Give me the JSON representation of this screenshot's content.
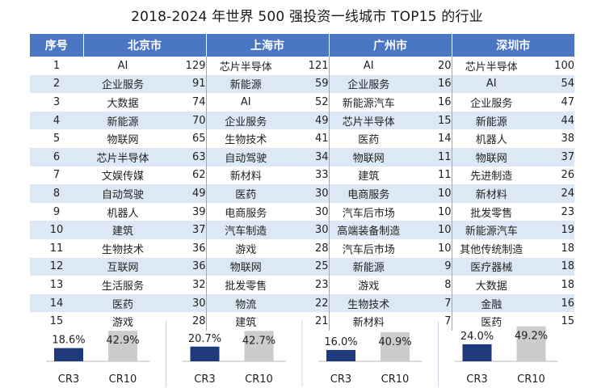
{
  "title": "2018-2024 年世界 500 强投资一线城市 TOP15 的行业",
  "headers": {
    "idx": "序号",
    "cities": [
      "北京市",
      "上海市",
      "广州市",
      "深圳市"
    ]
  },
  "chart_data": {
    "type": "table",
    "rows": [
      {
        "idx": "1",
        "cells": [
          [
            "AI",
            "129"
          ],
          [
            "芯片半导体",
            "121"
          ],
          [
            "AI",
            "20"
          ],
          [
            "芯片半导体",
            "100"
          ]
        ]
      },
      {
        "idx": "2",
        "cells": [
          [
            "企业服务",
            "91"
          ],
          [
            "新能源",
            "59"
          ],
          [
            "企业服务",
            "16"
          ],
          [
            "AI",
            "54"
          ]
        ]
      },
      {
        "idx": "3",
        "cells": [
          [
            "大数据",
            "74"
          ],
          [
            "AI",
            "52"
          ],
          [
            "新能源汽车",
            "16"
          ],
          [
            "企业服务",
            "47"
          ]
        ]
      },
      {
        "idx": "4",
        "cells": [
          [
            "新能源",
            "70"
          ],
          [
            "企业服务",
            "49"
          ],
          [
            "芯片半导体",
            "15"
          ],
          [
            "新能源",
            "44"
          ]
        ]
      },
      {
        "idx": "5",
        "cells": [
          [
            "物联网",
            "65"
          ],
          [
            "生物技术",
            "41"
          ],
          [
            "医药",
            "14"
          ],
          [
            "机器人",
            "38"
          ]
        ]
      },
      {
        "idx": "6",
        "cells": [
          [
            "芯片半导体",
            "63"
          ],
          [
            "自动驾驶",
            "34"
          ],
          [
            "物联网",
            "11"
          ],
          [
            "物联网",
            "37"
          ]
        ]
      },
      {
        "idx": "7",
        "cells": [
          [
            "文娱传媒",
            "62"
          ],
          [
            "新材料",
            "33"
          ],
          [
            "建筑",
            "11"
          ],
          [
            "先进制造",
            "26"
          ]
        ]
      },
      {
        "idx": "8",
        "cells": [
          [
            "自动驾驶",
            "49"
          ],
          [
            "医药",
            "30"
          ],
          [
            "电商服务",
            "10"
          ],
          [
            "新材料",
            "24"
          ]
        ]
      },
      {
        "idx": "9",
        "cells": [
          [
            "机器人",
            "39"
          ],
          [
            "电商服务",
            "30"
          ],
          [
            "汽车后市场",
            "10"
          ],
          [
            "批发零售",
            "23"
          ]
        ]
      },
      {
        "idx": "10",
        "cells": [
          [
            "建筑",
            "37"
          ],
          [
            "汽车制造",
            "30"
          ],
          [
            "高端装备制造",
            "10"
          ],
          [
            "新能源汽车",
            "19"
          ]
        ]
      },
      {
        "idx": "11",
        "cells": [
          [
            "生物技术",
            "36"
          ],
          [
            "游戏",
            "28"
          ],
          [
            "汽车后市场",
            "10"
          ],
          [
            "其他传统制造",
            "18"
          ]
        ]
      },
      {
        "idx": "12",
        "cells": [
          [
            "互联网",
            "36"
          ],
          [
            "物联网",
            "25"
          ],
          [
            "新能源",
            "9"
          ],
          [
            "医疗器械",
            "18"
          ]
        ]
      },
      {
        "idx": "13",
        "cells": [
          [
            "生活服务",
            "32"
          ],
          [
            "批发零售",
            "23"
          ],
          [
            "游戏",
            "8"
          ],
          [
            "大数据",
            "18"
          ]
        ]
      },
      {
        "idx": "14",
        "cells": [
          [
            "医药",
            "30"
          ],
          [
            "物流",
            "22"
          ],
          [
            "生物技术",
            "7"
          ],
          [
            "金融",
            "16"
          ]
        ]
      },
      {
        "idx": "15",
        "cells": [
          [
            "游戏",
            "28"
          ],
          [
            "建筑",
            "21"
          ],
          [
            "新材料",
            "7"
          ],
          [
            "医药",
            "15"
          ]
        ]
      }
    ],
    "concentration": {
      "type": "bar",
      "categories": [
        "CR3",
        "CR10"
      ],
      "groups": [
        {
          "city": "北京市",
          "values": [
            18.6,
            42.9
          ],
          "labels": [
            "18.6%",
            "42.9%"
          ]
        },
        {
          "city": "上海市",
          "values": [
            20.7,
            42.7
          ],
          "labels": [
            "20.7%",
            "42.7%"
          ]
        },
        {
          "city": "广州市",
          "values": [
            16.0,
            40.9
          ],
          "labels": [
            "16.0%",
            "40.9%"
          ]
        },
        {
          "city": "深圳市",
          "values": [
            24.0,
            49.2
          ],
          "labels": [
            "24.0%",
            "49.2%"
          ]
        }
      ],
      "ylim": [
        0,
        50
      ],
      "colors": {
        "CR3": "#1f3a7a",
        "CR10": "#cccccc"
      }
    }
  }
}
